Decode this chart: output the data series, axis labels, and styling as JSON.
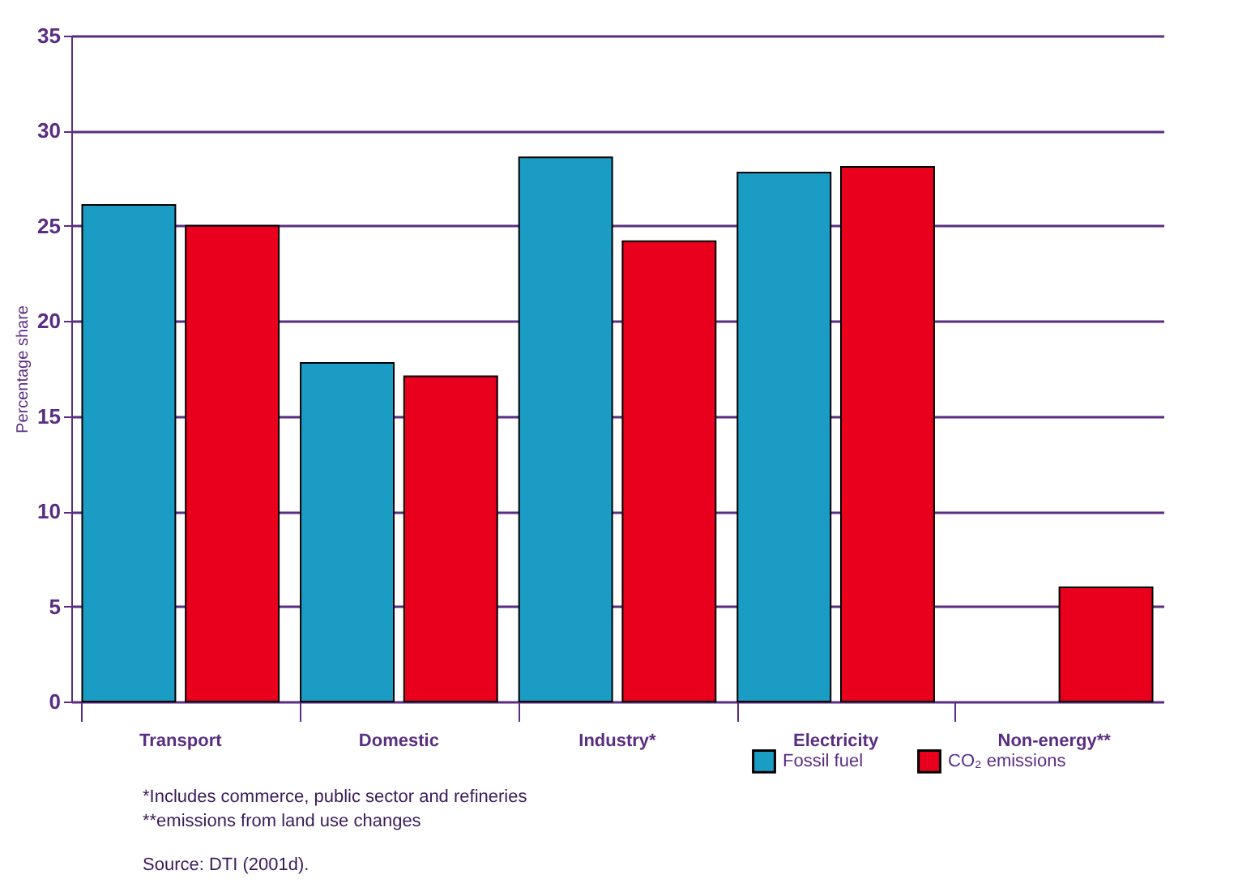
{
  "chart_data": {
    "type": "bar",
    "ylabel": "Percentage share",
    "categories": [
      "Transport",
      "Domestic",
      "Industry*",
      "Electricity",
      "Non-energy**"
    ],
    "series": [
      {
        "name": "Fossil fuel",
        "color": "#1a9cc4",
        "values": [
          26.1,
          17.8,
          28.6,
          27.8,
          null
        ]
      },
      {
        "name": "CO₂ emissions",
        "color": "#e8001c",
        "values": [
          25.0,
          17.1,
          24.2,
          28.1,
          6.0
        ]
      }
    ],
    "ylim": [
      0,
      35
    ],
    "yticks": [
      0,
      5,
      10,
      15,
      20,
      25,
      30,
      35
    ],
    "grid": "y",
    "legend": "bottom right",
    "annotations": [
      "*Includes commerce, public sector and refineries",
      "**emissions from land use changes",
      "Source: DTI (2001d)."
    ]
  }
}
